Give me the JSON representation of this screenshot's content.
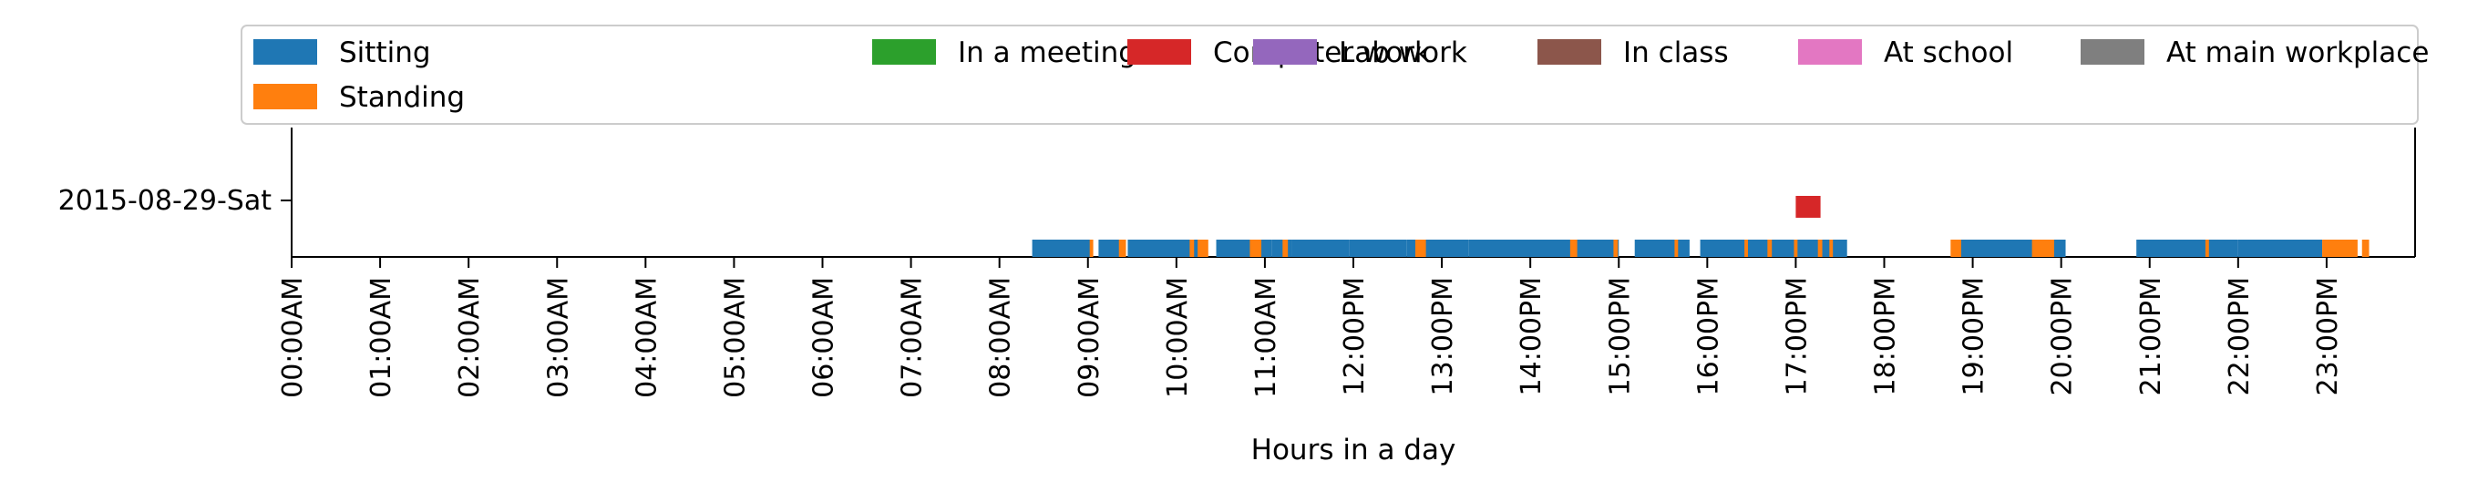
{
  "chart_data": {
    "type": "bar",
    "orientation": "horizontal-timeline",
    "title": "",
    "xlabel": "Hours in a day",
    "ylabel": "",
    "xlim": [
      0,
      24
    ],
    "x_ticks": [
      {
        "value": 0,
        "label": "00:00AM"
      },
      {
        "value": 1,
        "label": "01:00AM"
      },
      {
        "value": 2,
        "label": "02:00AM"
      },
      {
        "value": 3,
        "label": "03:00AM"
      },
      {
        "value": 4,
        "label": "04:00AM"
      },
      {
        "value": 5,
        "label": "05:00AM"
      },
      {
        "value": 6,
        "label": "06:00AM"
      },
      {
        "value": 7,
        "label": "07:00AM"
      },
      {
        "value": 8,
        "label": "08:00AM"
      },
      {
        "value": 9,
        "label": "09:00AM"
      },
      {
        "value": 10,
        "label": "10:00AM"
      },
      {
        "value": 11,
        "label": "11:00AM"
      },
      {
        "value": 12,
        "label": "12:00PM"
      },
      {
        "value": 13,
        "label": "13:00PM"
      },
      {
        "value": 14,
        "label": "14:00PM"
      },
      {
        "value": 15,
        "label": "15:00PM"
      },
      {
        "value": 16,
        "label": "16:00PM"
      },
      {
        "value": 17,
        "label": "17:00PM"
      },
      {
        "value": 18,
        "label": "18:00PM"
      },
      {
        "value": 19,
        "label": "19:00PM"
      },
      {
        "value": 20,
        "label": "20:00PM"
      },
      {
        "value": 21,
        "label": "21:00PM"
      },
      {
        "value": 22,
        "label": "22:00PM"
      },
      {
        "value": 23,
        "label": "23:00PM"
      }
    ],
    "y_ticks": [
      {
        "label": "2015-08-29-Sat"
      }
    ],
    "grid": false,
    "legend": {
      "placement": "top",
      "columns": 7,
      "entries": [
        {
          "name": "Sitting",
          "color": "#1f77b4"
        },
        {
          "name": "In a meeting",
          "color": "#2ca02c"
        },
        {
          "name": "Computer work",
          "color": "#d62728"
        },
        {
          "name": "Lab work",
          "color": "#9467bd"
        },
        {
          "name": "In class",
          "color": "#8c564b"
        },
        {
          "name": "At school",
          "color": "#e377c2"
        },
        {
          "name": "At main workplace",
          "color": "#7f7f7f"
        },
        {
          "name": "Standing",
          "color": "#ff7f0e"
        }
      ]
    },
    "series": [
      {
        "name": "Sitting",
        "color": "#1f77b4",
        "lane": 0,
        "intervals": [
          [
            8.37,
            9.05
          ],
          [
            9.12,
            9.38
          ],
          [
            9.45,
            10.27
          ],
          [
            10.45,
            10.8
          ],
          [
            10.8,
            11.08
          ],
          [
            11.08,
            11.3
          ],
          [
            11.3,
            11.3
          ],
          [
            11.3,
            11.95
          ],
          [
            11.95,
            12.6
          ],
          [
            12.6,
            13.3
          ],
          [
            13.3,
            14.5
          ],
          [
            14.5,
            15.0
          ],
          [
            15.18,
            15.8
          ],
          [
            15.92,
            17.58
          ],
          [
            18.85,
            19.7
          ],
          [
            19.85,
            20.05
          ],
          [
            20.85,
            22.0
          ],
          [
            22.0,
            22.95
          ]
        ]
      },
      {
        "name": "Standing",
        "color": "#ff7f0e",
        "lane": 0,
        "intervals": [
          [
            9.02,
            9.06
          ],
          [
            9.35,
            9.43
          ],
          [
            10.15,
            10.2
          ],
          [
            10.24,
            10.36
          ],
          [
            10.83,
            10.96
          ],
          [
            11.2,
            11.26
          ],
          [
            12.7,
            12.82
          ],
          [
            14.45,
            14.53
          ],
          [
            14.94,
            14.99
          ],
          [
            15.63,
            15.67
          ],
          [
            16.42,
            16.46
          ],
          [
            16.68,
            16.73
          ],
          [
            16.98,
            17.02
          ],
          [
            17.25,
            17.3
          ],
          [
            17.38,
            17.42
          ],
          [
            18.75,
            18.87
          ],
          [
            19.67,
            19.92
          ],
          [
            21.63,
            21.67
          ],
          [
            22.95,
            23.35
          ],
          [
            23.4,
            23.48
          ]
        ]
      },
      {
        "name": "Computer work",
        "color": "#d62728",
        "lane": 1,
        "intervals": [
          [
            17.0,
            17.28
          ]
        ]
      }
    ]
  }
}
